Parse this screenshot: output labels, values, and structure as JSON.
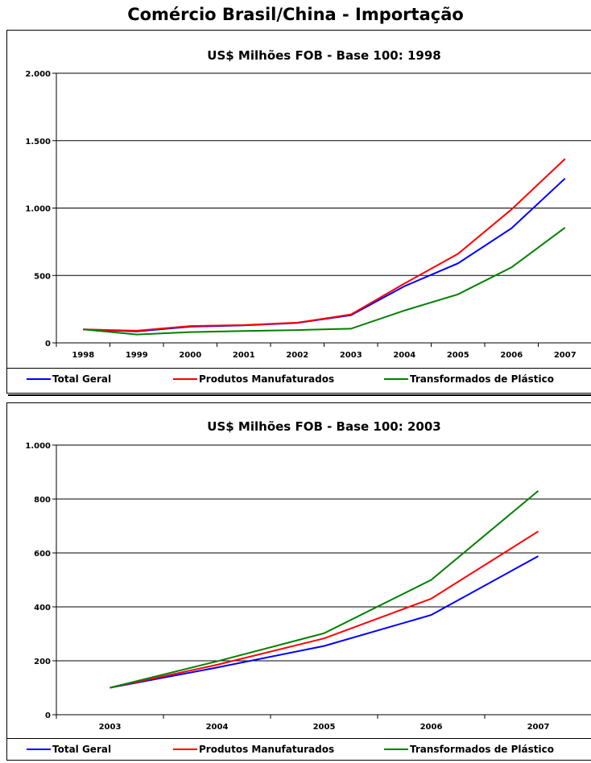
{
  "page_title": "Comércio Brasil/China - Importação",
  "chart_data": [
    {
      "type": "line",
      "title": "US$ Milhões FOB - Base 100: 1998",
      "categories": [
        "1998",
        "1999",
        "2000",
        "2001",
        "2002",
        "2003",
        "2004",
        "2005",
        "2006",
        "2007"
      ],
      "y_tick_labels": [
        "0",
        "500",
        "1.000",
        "1.500",
        "2.000"
      ],
      "y_ticks": [
        0,
        500,
        1000,
        1500,
        2000
      ],
      "ylim": [
        0,
        2000
      ],
      "grid": true,
      "legend_position": "bottom",
      "series": [
        {
          "name": "Total Geral",
          "color": "#0000ff",
          "values": [
            100,
            85,
            120,
            130,
            148,
            205,
            420,
            590,
            850,
            1220
          ]
        },
        {
          "name": "Produtos Manufaturados",
          "color": "#ff0000",
          "values": [
            100,
            90,
            125,
            132,
            150,
            210,
            440,
            660,
            990,
            1365
          ]
        },
        {
          "name": "Transformados de Plástico",
          "color": "#008000",
          "values": [
            100,
            62,
            80,
            88,
            95,
            105,
            240,
            360,
            560,
            855
          ]
        }
      ]
    },
    {
      "type": "line",
      "title": "US$ Milhões FOB - Base 100: 2003",
      "categories": [
        "2003",
        "2004",
        "2005",
        "2006",
        "2007"
      ],
      "y_tick_labels": [
        "0",
        "200",
        "400",
        "600",
        "800",
        "1.000"
      ],
      "y_ticks": [
        0,
        200,
        400,
        600,
        800,
        1000
      ],
      "ylim": [
        0,
        1000
      ],
      "grid": true,
      "legend_position": "bottom",
      "series": [
        {
          "name": "Total Geral",
          "color": "#0000ff",
          "values": [
            100,
            175,
            255,
            370,
            588
          ]
        },
        {
          "name": "Produtos Manufaturados",
          "color": "#ff0000",
          "values": [
            100,
            185,
            283,
            430,
            680
          ]
        },
        {
          "name": "Transformados de Plástico",
          "color": "#008000",
          "values": [
            100,
            198,
            302,
            500,
            830
          ]
        }
      ]
    }
  ]
}
